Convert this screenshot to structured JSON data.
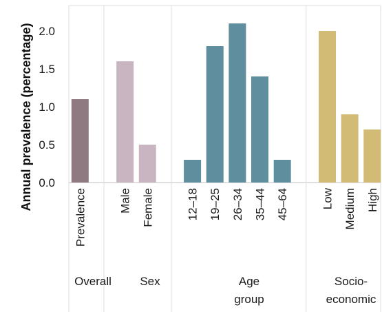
{
  "chart_data": {
    "type": "bar",
    "ylabel": "Annual prevalence (percentage)",
    "ylim": [
      0,
      2.3
    ],
    "yticks": [
      "0.0",
      "0.5",
      "1.0",
      "1.5",
      "2.0"
    ],
    "grid": false,
    "groups": [
      {
        "name": "Overall",
        "name_lines": [
          "Overall"
        ],
        "color": "#8e7a80",
        "categories": [
          "Prevalence"
        ],
        "values": [
          1.1
        ]
      },
      {
        "name": "Sex",
        "name_lines": [
          "Sex"
        ],
        "color": "#c9b5c1",
        "categories": [
          "Male",
          "Female"
        ],
        "values": [
          1.6,
          0.5
        ]
      },
      {
        "name": "Age group",
        "name_lines": [
          "Age",
          "group"
        ],
        "color": "#5f8e9f",
        "categories": [
          "12–18",
          "19–25",
          "26–34",
          "35–44",
          "45–64"
        ],
        "values": [
          0.3,
          1.8,
          2.1,
          1.4,
          0.3
        ]
      },
      {
        "name": "Socio-economic",
        "name_lines": [
          "Socio-",
          "economic"
        ],
        "color": "#d1bb75",
        "categories": [
          "Low",
          "Medium",
          "High"
        ],
        "values": [
          2.0,
          0.9,
          0.7
        ]
      }
    ]
  }
}
